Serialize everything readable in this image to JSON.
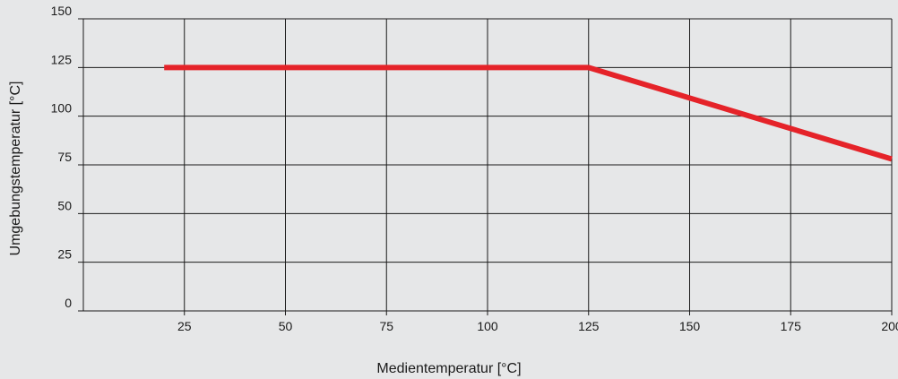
{
  "chart_data": {
    "type": "line",
    "title": "",
    "xlabel": "Medientemperatur [°C]",
    "ylabel": "Umgebungstemperatur [°C]",
    "xlim": [
      0,
      200
    ],
    "ylim": [
      0,
      150
    ],
    "x_ticks": [
      25,
      50,
      75,
      100,
      125,
      150,
      175,
      200
    ],
    "y_ticks": [
      0,
      25,
      50,
      75,
      100,
      125,
      150
    ],
    "grid": true,
    "legend": "none",
    "series": [
      {
        "x": [
          20,
          125,
          200
        ],
        "y": [
          125,
          125,
          78
        ],
        "color": "#e52329"
      }
    ],
    "colors": {
      "background": "#e6e7e8",
      "grid": "#1a1a1a",
      "line": "#e52329"
    }
  }
}
